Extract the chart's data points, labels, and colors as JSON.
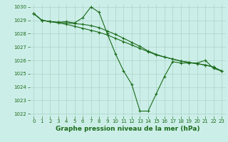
{
  "title": "Graphe pression niveau de la mer (hPa)",
  "bg_color": "#cceee8",
  "line_color": "#1a6b1a",
  "grid_color": "#aad4c8",
  "x_values": [
    0,
    1,
    2,
    3,
    4,
    5,
    6,
    7,
    8,
    9,
    10,
    11,
    12,
    13,
    14,
    15,
    16,
    17,
    18,
    19,
    20,
    21,
    22,
    23
  ],
  "series1": [
    1029.5,
    1029.0,
    1028.9,
    1028.85,
    1028.9,
    1028.8,
    1029.2,
    1030.0,
    1029.6,
    1028.0,
    1026.5,
    1025.2,
    1024.2,
    1022.2,
    1022.2,
    1023.5,
    1024.8,
    1025.9,
    1025.8,
    1025.8,
    1025.8,
    1026.0,
    1025.4,
    1025.2
  ],
  "series2": [
    1029.5,
    1029.0,
    1028.9,
    1028.8,
    1028.7,
    1028.55,
    1028.4,
    1028.25,
    1028.1,
    1027.9,
    1027.65,
    1027.4,
    1027.15,
    1026.9,
    1026.65,
    1026.4,
    1026.25,
    1026.1,
    1025.95,
    1025.85,
    1025.75,
    1025.65,
    1025.5,
    1025.2
  ],
  "series3": [
    1029.5,
    1029.0,
    1028.9,
    1028.85,
    1028.8,
    1028.75,
    1028.7,
    1028.6,
    1028.45,
    1028.2,
    1027.95,
    1027.65,
    1027.35,
    1027.05,
    1026.7,
    1026.45,
    1026.25,
    1026.1,
    1025.95,
    1025.85,
    1025.75,
    1025.65,
    1025.5,
    1025.2
  ],
  "ylim": [
    1021.8,
    1030.2
  ],
  "yticks": [
    1022,
    1023,
    1024,
    1025,
    1026,
    1027,
    1028,
    1029,
    1030
  ],
  "xticks": [
    0,
    1,
    2,
    3,
    4,
    5,
    6,
    7,
    8,
    9,
    10,
    11,
    12,
    13,
    14,
    15,
    16,
    17,
    18,
    19,
    20,
    21,
    22,
    23
  ],
  "title_fontsize": 6.5,
  "tick_fontsize": 5.0
}
